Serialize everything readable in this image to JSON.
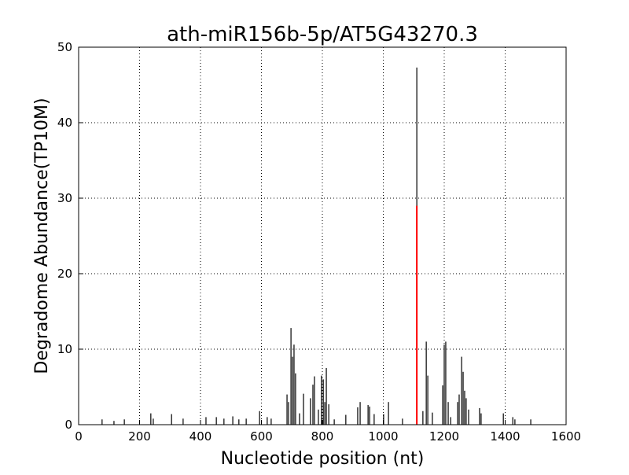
{
  "chart_data": {
    "type": "stem",
    "title": "ath-miR156b-5p/AT5G43270.3",
    "x_label": "Nucleotide position (nt)",
    "y_label": "Degradome Abundance(TP10M)",
    "xlim": [
      0,
      1600
    ],
    "xticks": [
      0,
      200,
      400,
      600,
      800,
      1000,
      1200,
      1400,
      1600
    ],
    "ylim": [
      0,
      50
    ],
    "yticks": [
      0,
      10,
      20,
      30,
      40,
      50
    ],
    "grid": true,
    "series": [
      {
        "color": "#000000",
        "x": [
          77,
          116,
          150,
          237,
          245,
          305,
          343,
          418,
          452,
          477,
          506,
          526,
          550,
          594,
          619,
          632,
          684,
          689,
          697,
          702,
          707,
          712,
          725,
          738,
          761,
          769,
          774,
          787,
          797,
          803,
          808,
          813,
          821,
          839,
          877,
          916,
          924,
          950,
          955,
          970,
          1001,
          1017,
          1063,
          1110,
          1130,
          1141,
          1146,
          1161,
          1195,
          1200,
          1205,
          1213,
          1221,
          1244,
          1249,
          1257,
          1262,
          1267,
          1272,
          1280,
          1316,
          1321,
          1394,
          1425,
          1432,
          1484
        ],
        "values": [
          0.7,
          0.5,
          0.7,
          1.5,
          0.8,
          1.4,
          0.8,
          1,
          1,
          0.8,
          1.1,
          0.7,
          0.8,
          1.8,
          1,
          0.8,
          4,
          3,
          12.8,
          9,
          10.6,
          6.8,
          1.5,
          4.1,
          3.5,
          5.3,
          6.4,
          2,
          6.5,
          6,
          3,
          7.5,
          2.7,
          0.7,
          1.3,
          2.3,
          3,
          2.6,
          2.4,
          1.4,
          1.4,
          3,
          0.8,
          47.3,
          1.8,
          11,
          6.5,
          1.6,
          5.2,
          10.6,
          11,
          3,
          1,
          3,
          4,
          9,
          7,
          4.5,
          3.5,
          2,
          2.2,
          1.5,
          1.5,
          1,
          0.7,
          0.7
        ]
      },
      {
        "color": "#ff0000",
        "x": [
          1110
        ],
        "values": [
          29
        ]
      }
    ]
  }
}
